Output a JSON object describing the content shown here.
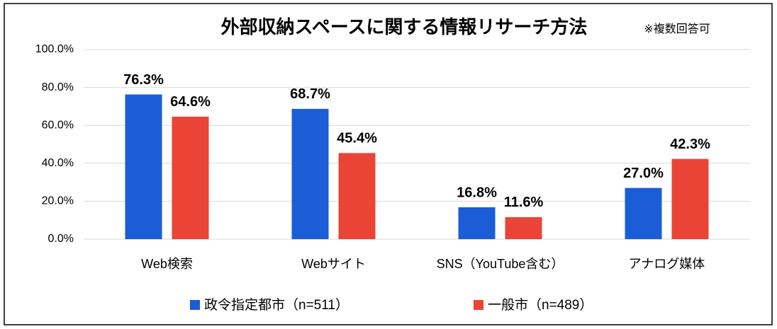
{
  "chart_data": {
    "type": "bar",
    "title": "外部収納スペースに関する情報リサーチ方法",
    "subtitle": "※複数回答可",
    "categories": [
      "Web検索",
      "Webサイト",
      "SNS（YouTube含む）",
      "アナログ媒体"
    ],
    "series": [
      {
        "name": "政令指定都市（n=511）",
        "color": "#1a5dd6",
        "values": [
          76.3,
          68.7,
          16.8,
          27.0
        ],
        "value_labels": [
          "76.3%",
          "68.7%",
          "16.8%",
          "27.0%"
        ]
      },
      {
        "name": "一般市（n=489）",
        "color": "#e94435",
        "values": [
          64.6,
          45.4,
          11.6,
          42.3
        ],
        "value_labels": [
          "64.6%",
          "45.4%",
          "11.6%",
          "42.3%"
        ]
      }
    ],
    "ylim": [
      0,
      100
    ],
    "yticks": [
      {
        "value": 0,
        "label": "0.0%"
      },
      {
        "value": 20,
        "label": "20.0%"
      },
      {
        "value": 40,
        "label": "40.0%"
      },
      {
        "value": 60,
        "label": "60.0%"
      },
      {
        "value": 80,
        "label": "80.0%"
      },
      {
        "value": 100,
        "label": "100.0%"
      }
    ],
    "grid": true,
    "legend": "bottom"
  }
}
